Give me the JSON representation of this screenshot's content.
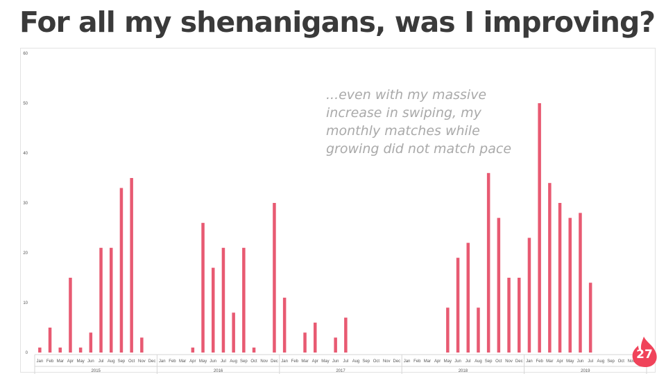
{
  "title": "For all my shenanigans, was I improving?",
  "annotation": "...even with my massive\nincrease in swiping, my\nmonthly matches while\ngrowing did not match pace",
  "page_number": "27",
  "colors": {
    "bar": "#e85a72",
    "title": "#3a3a3a",
    "annotation": "#a9a9a9",
    "badge": "#f0435a"
  },
  "chart_data": {
    "type": "bar",
    "title": "",
    "xlabel": "",
    "ylabel": "",
    "ylim": [
      0,
      60
    ],
    "yticks": [
      0,
      10,
      20,
      30,
      40,
      50,
      60
    ],
    "grid": false,
    "legend": "none",
    "years": [
      "2015",
      "2016",
      "2017",
      "2018",
      "2019"
    ],
    "months": [
      "Jan",
      "Feb",
      "Mar",
      "Apr",
      "May",
      "Jun",
      "Jul",
      "Aug",
      "Sep",
      "Oct",
      "Nov",
      "Dec"
    ],
    "series": [
      {
        "values": [
          1,
          5,
          1,
          15,
          1,
          4,
          21,
          21,
          33,
          35,
          3,
          0,
          0,
          0,
          0,
          1,
          26,
          17,
          21,
          8,
          21,
          1,
          0,
          30,
          11,
          0,
          4,
          6,
          0,
          3,
          7,
          0,
          0,
          0,
          0,
          0,
          0,
          0,
          0,
          0,
          9,
          19,
          22,
          9,
          36,
          27,
          15,
          15,
          23,
          50,
          34,
          30,
          27,
          28,
          14,
          0,
          0,
          0,
          0,
          0
        ]
      }
    ]
  }
}
